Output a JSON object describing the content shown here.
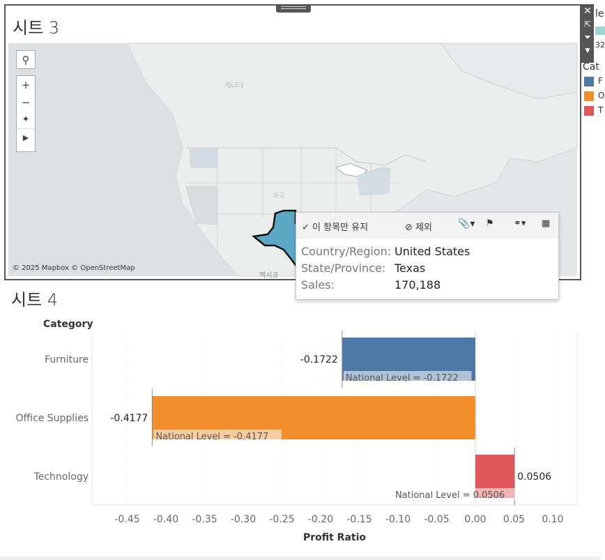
{
  "sheet3": {
    "title": "시트 3",
    "attribution": "© 2025 Mapbox © OpenStreetMap",
    "map_labels": {
      "canada": "캐나다",
      "usa": "미국",
      "mexico": "멕시코"
    },
    "highlight_color": "#5ba8c4",
    "controls": [
      "search-icon",
      "zoom-in-icon",
      "zoom-out-icon",
      "pin-icon",
      "play-icon"
    ]
  },
  "toolbar": {
    "icons": [
      "close-icon",
      "popout-icon",
      "filter-icon",
      "more-icon"
    ]
  },
  "legend": {
    "top_text": "le",
    "sub_text": "32",
    "title": "Cat",
    "items": [
      {
        "label": "F",
        "color": "#4e79a7"
      },
      {
        "label": "O",
        "color": "#f28e2b"
      },
      {
        "label": "T",
        "color": "#e15759"
      }
    ]
  },
  "tooltip": {
    "keep_only": "✓ 이 항목만 유지",
    "exclude": "⊘ 제외",
    "rows": [
      {
        "key": "Country/Region:",
        "value": "United States"
      },
      {
        "key": "State/Province:",
        "value": "Texas"
      },
      {
        "key": "Sales:",
        "value": "170,188"
      }
    ]
  },
  "sheet4": {
    "title": "시트 4"
  },
  "chart_data": {
    "type": "bar",
    "orientation": "horizontal",
    "row_header": "Category",
    "categories": [
      "Furniture",
      "Office Supplies",
      "Technology"
    ],
    "values": [
      -0.1722,
      -0.4177,
      0.0506
    ],
    "value_labels": [
      "-0.1722",
      "-0.4177",
      "0.0506"
    ],
    "colors": [
      "#4e79a7",
      "#f28e2b",
      "#e15759"
    ],
    "reference_labels": [
      "National Level = -0.1722",
      "National Level = -0.4177",
      "National Level = 0.0506"
    ],
    "xlabel": "Profit Ratio",
    "xlim": [
      -0.5,
      0.13
    ],
    "xticks": [
      -0.45,
      -0.4,
      -0.35,
      -0.3,
      -0.25,
      -0.2,
      -0.15,
      -0.1,
      -0.05,
      0.0,
      0.05,
      0.1
    ],
    "xtick_labels": [
      "-0.45",
      "-0.40",
      "-0.35",
      "-0.30",
      "-0.25",
      "-0.20",
      "-0.15",
      "-0.10",
      "-0.05",
      "0.00",
      "0.05",
      "0.10"
    ]
  }
}
